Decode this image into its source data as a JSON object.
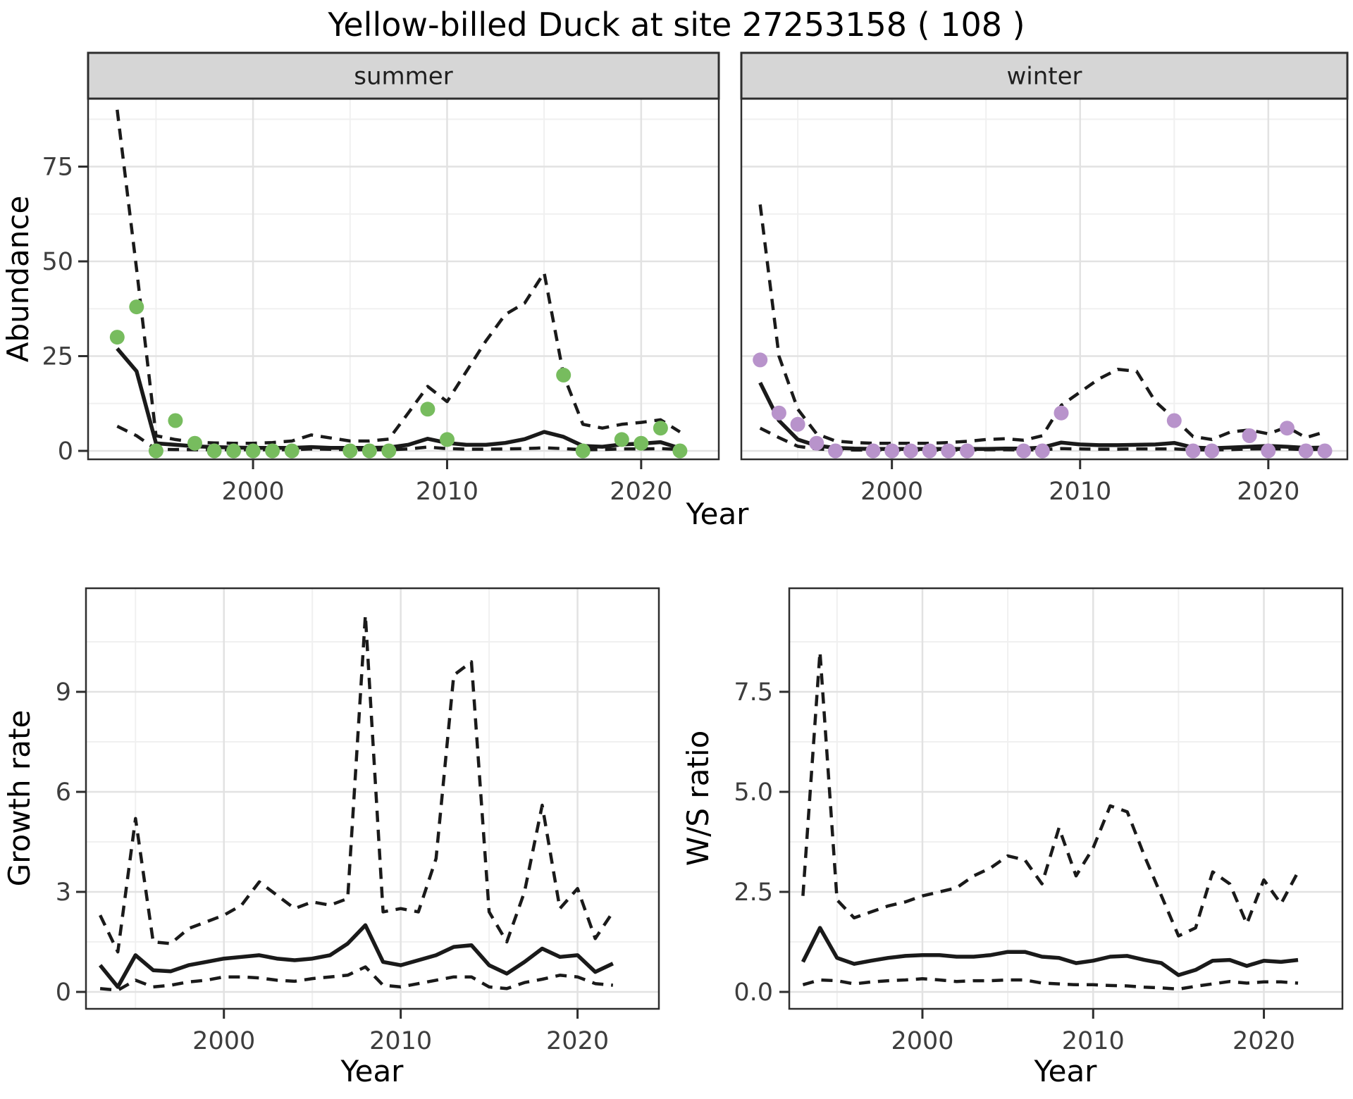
{
  "title": "Yellow-billed Duck at site 27253158 ( 108 )",
  "colors": {
    "summer_point": "#77bc5e",
    "winter_point": "#b893cb",
    "line": "#1a1a1a",
    "strip_fill": "#d6d6d6",
    "strip_border": "#2e2e2e",
    "panel_border": "#2e2e2e",
    "grid_major": "#e2e2e2",
    "grid_minor": "#f0f0f0",
    "tick_label": "#3d3d3d"
  },
  "chart_data": [
    {
      "id": "abundance-summer",
      "type": "line",
      "facet_label": "summer",
      "xlabel": "Year",
      "ylabel": "Abundance",
      "xticks": [
        2000,
        2010,
        2020
      ],
      "xtick_labels": [
        "2000",
        "2010",
        "2020"
      ],
      "yticks": [
        0,
        25,
        50,
        75
      ],
      "ytick_labels": [
        "0",
        "25",
        "50",
        "75"
      ],
      "xlim": [
        1991.5,
        2024.0
      ],
      "ylim": [
        -2,
        93
      ],
      "grid": true,
      "legend": "none",
      "years": [
        1993,
        1994,
        1995,
        1996,
        1997,
        1998,
        1999,
        2000,
        2001,
        2002,
        2003,
        2004,
        2005,
        2006,
        2007,
        2008,
        2009,
        2010,
        2011,
        2012,
        2013,
        2014,
        2015,
        2016,
        2017,
        2018,
        2019,
        2020,
        2021,
        2022
      ],
      "series": [
        {
          "name": "fit",
          "style": "solid",
          "values": [
            27,
            21,
            2,
            1.6,
            1.2,
            1.0,
            0.9,
            0.8,
            0.8,
            0.8,
            1.0,
            0.8,
            0.8,
            0.8,
            0.9,
            1.6,
            3.2,
            2.1,
            1.6,
            1.6,
            2.1,
            3.1,
            5.0,
            3.7,
            1.3,
            1.1,
            1.7,
            1.9,
            2.3,
            0.7
          ]
        },
        {
          "name": "ci_upper",
          "style": "dashed",
          "values": [
            90,
            48,
            4,
            3,
            2.3,
            2.1,
            2.0,
            2.0,
            2.2,
            2.6,
            4.2,
            3.4,
            2.6,
            2.6,
            3.1,
            10,
            17,
            13,
            21,
            29,
            36,
            39,
            47,
            20,
            7,
            6,
            7,
            7.5,
            8.2,
            5
          ]
        },
        {
          "name": "ci_lower",
          "style": "dashed",
          "values": [
            6.5,
            4,
            0.4,
            0.35,
            0.3,
            0.3,
            0.3,
            0.3,
            0.3,
            0.3,
            0.5,
            0.4,
            0.3,
            0.3,
            0.3,
            0.5,
            1.0,
            0.6,
            0.45,
            0.45,
            0.5,
            0.6,
            0.8,
            0.6,
            0.3,
            0.35,
            0.5,
            0.5,
            0.6,
            0.35
          ]
        }
      ],
      "observations": [
        [
          1993,
          30
        ],
        [
          1994,
          38
        ],
        [
          1995,
          0
        ],
        [
          1996,
          8
        ],
        [
          1997,
          2
        ],
        [
          1998,
          0
        ],
        [
          1999,
          0
        ],
        [
          2000,
          0
        ],
        [
          2001,
          0
        ],
        [
          2002,
          0
        ],
        [
          2005,
          0
        ],
        [
          2006,
          0
        ],
        [
          2007,
          0
        ],
        [
          2009,
          11
        ],
        [
          2010,
          3
        ],
        [
          2016,
          20
        ],
        [
          2017,
          0
        ],
        [
          2019,
          3
        ],
        [
          2020,
          2
        ],
        [
          2021,
          6
        ],
        [
          2022,
          0
        ]
      ],
      "point_color": "#77bc5e"
    },
    {
      "id": "abundance-winter",
      "type": "line",
      "facet_label": "winter",
      "xlabel": "Year",
      "ylabel": "Abundance",
      "xticks": [
        2000,
        2010,
        2020
      ],
      "xtick_labels": [
        "2000",
        "2010",
        "2020"
      ],
      "yticks": [
        0,
        25,
        50,
        75
      ],
      "ytick_labels": [
        "0",
        "25",
        "50",
        "75"
      ],
      "xlim": [
        1992.0,
        2024.2
      ],
      "ylim": [
        -2,
        93
      ],
      "grid": true,
      "legend": "none",
      "years": [
        1993,
        1994,
        1995,
        1996,
        1997,
        1998,
        1999,
        2000,
        2001,
        2002,
        2003,
        2004,
        2005,
        2006,
        2007,
        2008,
        2009,
        2010,
        2011,
        2012,
        2013,
        2014,
        2015,
        2016,
        2017,
        2018,
        2019,
        2020,
        2021,
        2022,
        2023
      ],
      "series": [
        {
          "name": "fit",
          "style": "solid",
          "values": [
            18,
            8,
            3,
            1.4,
            0.8,
            0.6,
            0.5,
            0.5,
            0.5,
            0.5,
            0.5,
            0.5,
            0.5,
            0.6,
            0.6,
            0.9,
            2.2,
            1.7,
            1.5,
            1.5,
            1.6,
            1.7,
            2.1,
            0.9,
            0.7,
            0.9,
            1.1,
            1.3,
            1.1,
            0.8,
            0.9
          ]
        },
        {
          "name": "ci_upper",
          "style": "dashed",
          "values": [
            65,
            25,
            11,
            4.5,
            2.6,
            2.2,
            2.0,
            2.0,
            2.0,
            2.0,
            2.2,
            2.5,
            3.0,
            3.2,
            2.8,
            4.0,
            12,
            15.5,
            19,
            21.5,
            21,
            13,
            8.5,
            3.8,
            3.0,
            5.0,
            5.5,
            4.5,
            6.3,
            3.5,
            5.0
          ]
        },
        {
          "name": "ci_lower",
          "style": "dashed",
          "values": [
            6,
            3.5,
            1.2,
            0.5,
            0.3,
            0.25,
            0.2,
            0.2,
            0.2,
            0.2,
            0.2,
            0.25,
            0.3,
            0.3,
            0.25,
            0.3,
            0.6,
            0.5,
            0.45,
            0.45,
            0.5,
            0.5,
            0.5,
            0.3,
            0.25,
            0.35,
            0.5,
            0.55,
            0.5,
            0.35,
            0.4
          ]
        }
      ],
      "observations": [
        [
          1993,
          24
        ],
        [
          1994,
          10
        ],
        [
          1995,
          7
        ],
        [
          1996,
          2
        ],
        [
          1997,
          0
        ],
        [
          1999,
          0
        ],
        [
          2000,
          0
        ],
        [
          2001,
          0
        ],
        [
          2002,
          0
        ],
        [
          2003,
          0
        ],
        [
          2004,
          0
        ],
        [
          2007,
          0
        ],
        [
          2008,
          0
        ],
        [
          2009,
          10
        ],
        [
          2015,
          8
        ],
        [
          2016,
          0
        ],
        [
          2017,
          0
        ],
        [
          2019,
          4
        ],
        [
          2020,
          0
        ],
        [
          2021,
          6
        ],
        [
          2022,
          0
        ],
        [
          2023,
          0
        ]
      ],
      "point_color": "#b893cb"
    },
    {
      "id": "growth-rate",
      "type": "line",
      "facet_label": null,
      "xlabel": "Year",
      "ylabel": "Growth rate",
      "xticks": [
        2000,
        2010,
        2020
      ],
      "xtick_labels": [
        "2000",
        "2010",
        "2020"
      ],
      "yticks": [
        0,
        3,
        6,
        9
      ],
      "ytick_labels": [
        "0",
        "3",
        "6",
        "9"
      ],
      "xlim": [
        1992.2,
        2024.6
      ],
      "ylim": [
        -0.5,
        12.1
      ],
      "grid": true,
      "legend": "none",
      "years": [
        1993,
        1994,
        1995,
        1996,
        1997,
        1998,
        1999,
        2000,
        2001,
        2002,
        2003,
        2004,
        2005,
        2006,
        2007,
        2008,
        2009,
        2010,
        2011,
        2012,
        2013,
        2014,
        2015,
        2016,
        2017,
        2018,
        2019,
        2020,
        2021,
        2022
      ],
      "series": [
        {
          "name": "fit",
          "style": "solid",
          "values": [
            0.8,
            0.15,
            1.1,
            0.65,
            0.62,
            0.8,
            0.9,
            1.0,
            1.05,
            1.1,
            1.0,
            0.95,
            1.0,
            1.1,
            1.45,
            2.0,
            0.9,
            0.8,
            0.95,
            1.1,
            1.35,
            1.4,
            0.8,
            0.55,
            0.9,
            1.3,
            1.05,
            1.1,
            0.6,
            0.85
          ]
        },
        {
          "name": "ci_upper",
          "style": "dashed",
          "values": [
            2.3,
            1.2,
            5.2,
            1.5,
            1.45,
            1.9,
            2.1,
            2.3,
            2.6,
            3.3,
            2.9,
            2.5,
            2.7,
            2.6,
            2.8,
            11.3,
            2.4,
            2.5,
            2.4,
            4.0,
            9.5,
            9.9,
            2.4,
            1.5,
            3.0,
            5.6,
            2.5,
            3.1,
            1.6,
            2.4
          ]
        },
        {
          "name": "ci_lower",
          "style": "dashed",
          "values": [
            0.1,
            0.05,
            0.35,
            0.15,
            0.2,
            0.3,
            0.35,
            0.45,
            0.45,
            0.42,
            0.35,
            0.32,
            0.4,
            0.45,
            0.5,
            0.75,
            0.2,
            0.15,
            0.25,
            0.35,
            0.45,
            0.45,
            0.15,
            0.1,
            0.28,
            0.38,
            0.5,
            0.45,
            0.25,
            0.2
          ]
        }
      ],
      "observations": [],
      "point_color": null
    },
    {
      "id": "ws-ratio",
      "type": "line",
      "facet_label": null,
      "xlabel": "Year",
      "ylabel": "W/S ratio",
      "xticks": [
        2000,
        2010,
        2020
      ],
      "xtick_labels": [
        "2000",
        "2010",
        "2020"
      ],
      "yticks": [
        0,
        2.5,
        5,
        7.5
      ],
      "ytick_labels": [
        "0.0",
        "2.5",
        "5.0",
        "7.5"
      ],
      "xlim": [
        1992.2,
        2024.6
      ],
      "ylim": [
        -0.4,
        10.1
      ],
      "grid": true,
      "legend": "none",
      "years": [
        1993,
        1994,
        1995,
        1996,
        1997,
        1998,
        1999,
        2000,
        2001,
        2002,
        2003,
        2004,
        2005,
        2006,
        2007,
        2008,
        2009,
        2010,
        2011,
        2012,
        2013,
        2014,
        2015,
        2016,
        2017,
        2018,
        2019,
        2020,
        2021,
        2022
      ],
      "series": [
        {
          "name": "fit",
          "style": "solid",
          "values": [
            0.75,
            1.6,
            0.85,
            0.7,
            0.78,
            0.85,
            0.9,
            0.92,
            0.92,
            0.88,
            0.88,
            0.92,
            1.0,
            1.0,
            0.88,
            0.85,
            0.72,
            0.78,
            0.88,
            0.9,
            0.8,
            0.72,
            0.42,
            0.55,
            0.78,
            0.8,
            0.65,
            0.78,
            0.75,
            0.8
          ]
        },
        {
          "name": "ci_upper",
          "style": "dashed",
          "values": [
            2.4,
            8.5,
            2.3,
            1.85,
            2.0,
            2.15,
            2.25,
            2.4,
            2.5,
            2.6,
            2.9,
            3.1,
            3.4,
            3.3,
            2.7,
            4.1,
            2.9,
            3.6,
            4.65,
            4.5,
            3.4,
            2.4,
            1.4,
            1.6,
            3.0,
            2.7,
            1.7,
            2.8,
            2.2,
            3.0
          ]
        },
        {
          "name": "ci_lower",
          "style": "dashed",
          "values": [
            0.18,
            0.3,
            0.28,
            0.2,
            0.25,
            0.28,
            0.3,
            0.33,
            0.3,
            0.26,
            0.28,
            0.28,
            0.3,
            0.3,
            0.22,
            0.2,
            0.18,
            0.18,
            0.16,
            0.15,
            0.12,
            0.1,
            0.07,
            0.14,
            0.2,
            0.26,
            0.22,
            0.25,
            0.25,
            0.22
          ]
        }
      ],
      "observations": [],
      "point_color": null
    }
  ]
}
